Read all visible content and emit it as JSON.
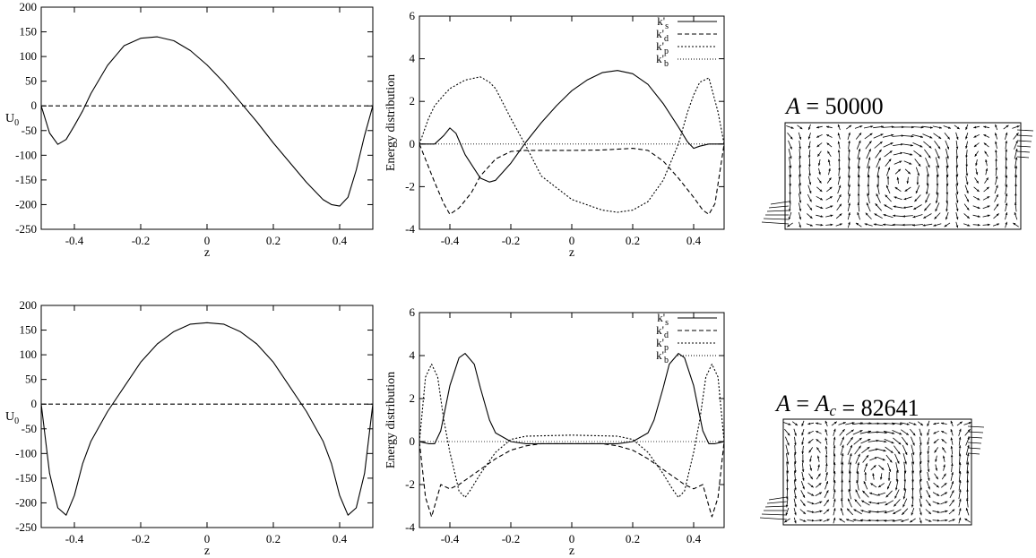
{
  "chart_data": [
    {
      "type": "line",
      "ylabel": "U_0",
      "xlabel": "z",
      "xlim": [
        -0.5,
        0.5
      ],
      "ylim": [
        -250,
        200
      ],
      "xticks": [
        "-0.4",
        "-0.2",
        "0",
        "0.2",
        "0.4"
      ],
      "yticks": [
        "200",
        "150",
        "100",
        "50",
        "0",
        "-50",
        "-100",
        "-150",
        "-200",
        "-250"
      ],
      "series": [
        {
          "style": "solid",
          "x": [
            -0.5,
            -0.475,
            -0.45,
            -0.425,
            -0.4,
            -0.375,
            -0.35,
            -0.3,
            -0.25,
            -0.2,
            -0.15,
            -0.1,
            -0.05,
            0.0,
            0.05,
            0.1,
            0.15,
            0.2,
            0.25,
            0.3,
            0.35,
            0.375,
            0.4,
            0.425,
            0.45,
            0.475,
            0.5
          ],
          "y": [
            0,
            -55,
            -78,
            -68,
            -40,
            -10,
            25,
            82,
            122,
            137,
            140,
            132,
            112,
            83,
            48,
            8,
            -32,
            -75,
            -115,
            -155,
            -190,
            -200,
            -203,
            -185,
            -130,
            -60,
            0
          ]
        },
        {
          "style": "dashed",
          "x": [
            -0.5,
            0.5
          ],
          "y": [
            0,
            0
          ]
        }
      ]
    },
    {
      "type": "line",
      "ylabel": "Energy distribution",
      "xlabel": "z",
      "xlim": [
        -0.5,
        0.5
      ],
      "ylim": [
        -4,
        6
      ],
      "xticks": [
        "-0.4",
        "-0.2",
        "0",
        "0.2",
        "0.4"
      ],
      "yticks": [
        "6",
        "4",
        "2",
        "0",
        "-2",
        "-4"
      ],
      "legend": {
        "position": "top-right"
      },
      "series": [
        {
          "name": "k'_s",
          "style": "solid",
          "x": [
            -0.5,
            -0.45,
            -0.42,
            -0.4,
            -0.38,
            -0.35,
            -0.3,
            -0.27,
            -0.25,
            -0.2,
            -0.15,
            -0.1,
            -0.05,
            0.0,
            0.05,
            0.1,
            0.15,
            0.2,
            0.25,
            0.3,
            0.35,
            0.38,
            0.4,
            0.42,
            0.45,
            0.5
          ],
          "y": [
            0,
            0,
            0.4,
            0.75,
            0.5,
            -0.5,
            -1.6,
            -1.78,
            -1.7,
            -0.9,
            0.1,
            1.0,
            1.8,
            2.5,
            3.0,
            3.35,
            3.45,
            3.3,
            2.8,
            1.9,
            0.8,
            0.1,
            -0.2,
            -0.1,
            0,
            0
          ]
        },
        {
          "name": "k'_d",
          "style": "dashed",
          "x": [
            -0.5,
            -0.45,
            -0.42,
            -0.4,
            -0.37,
            -0.33,
            -0.3,
            -0.25,
            -0.2,
            -0.15,
            -0.1,
            0.0,
            0.1,
            0.2,
            0.25,
            0.3,
            0.35,
            0.4,
            0.43,
            0.45,
            0.47,
            0.5
          ],
          "y": [
            0,
            -1.8,
            -2.8,
            -3.3,
            -3.0,
            -2.3,
            -1.5,
            -0.7,
            -0.35,
            -0.3,
            -0.3,
            -0.3,
            -0.28,
            -0.2,
            -0.3,
            -0.8,
            -1.6,
            -2.5,
            -3.1,
            -3.3,
            -2.8,
            0
          ]
        },
        {
          "name": "k'_p",
          "style": "dotted",
          "x": [
            -0.5,
            -0.47,
            -0.45,
            -0.42,
            -0.4,
            -0.35,
            -0.3,
            -0.27,
            -0.25,
            -0.2,
            -0.15,
            -0.1,
            0.0,
            0.1,
            0.15,
            0.2,
            0.25,
            0.3,
            0.35,
            0.38,
            0.4,
            0.42,
            0.45,
            0.48,
            0.5
          ],
          "y": [
            0,
            1.2,
            1.8,
            2.3,
            2.6,
            3.0,
            3.15,
            2.9,
            2.6,
            1.2,
            -0.1,
            -1.5,
            -2.6,
            -3.1,
            -3.2,
            -3.1,
            -2.7,
            -1.7,
            0.0,
            1.5,
            2.3,
            2.9,
            3.1,
            1.5,
            0
          ]
        },
        {
          "name": "k'_b",
          "style": "thin-dotted",
          "x": [
            -0.5,
            0.5
          ],
          "y": [
            0,
            0
          ]
        }
      ]
    },
    {
      "type": "line",
      "ylabel": "U_0",
      "xlabel": "z",
      "xlim": [
        -0.5,
        0.5
      ],
      "ylim": [
        -250,
        200
      ],
      "xticks": [
        "-0.4",
        "-0.2",
        "0",
        "0.2",
        "0.4"
      ],
      "yticks": [
        "200",
        "150",
        "100",
        "50",
        "0",
        "-50",
        "-100",
        "-150",
        "-200",
        "-250"
      ],
      "series": [
        {
          "style": "solid",
          "x": [
            -0.5,
            -0.475,
            -0.45,
            -0.425,
            -0.4,
            -0.375,
            -0.35,
            -0.3,
            -0.25,
            -0.2,
            -0.15,
            -0.1,
            -0.05,
            0.0,
            0.05,
            0.1,
            0.15,
            0.2,
            0.25,
            0.3,
            0.35,
            0.375,
            0.4,
            0.425,
            0.45,
            0.475,
            0.5
          ],
          "y": [
            0,
            -140,
            -210,
            -225,
            -185,
            -120,
            -75,
            -15,
            35,
            85,
            122,
            147,
            162,
            165,
            162,
            147,
            122,
            85,
            35,
            -15,
            -75,
            -120,
            -185,
            -225,
            -210,
            -140,
            0
          ]
        },
        {
          "style": "dashed",
          "x": [
            -0.5,
            0.5
          ],
          "y": [
            0,
            0
          ]
        }
      ]
    },
    {
      "type": "line",
      "ylabel": "Energy distribution",
      "xlabel": "z",
      "xlim": [
        -0.5,
        0.5
      ],
      "ylim": [
        -4,
        6
      ],
      "xticks": [
        "-0.4",
        "-0.2",
        "0",
        "0.2",
        "0.4"
      ],
      "yticks": [
        "6",
        "4",
        "2",
        "0",
        "-2",
        "-4"
      ],
      "legend": {
        "position": "top-right"
      },
      "series": [
        {
          "name": "k'_s",
          "style": "solid",
          "x": [
            -0.5,
            -0.47,
            -0.45,
            -0.43,
            -0.4,
            -0.37,
            -0.35,
            -0.32,
            -0.3,
            -0.27,
            -0.25,
            -0.2,
            -0.15,
            0.0,
            0.15,
            0.2,
            0.25,
            0.27,
            0.3,
            0.32,
            0.35,
            0.37,
            0.4,
            0.43,
            0.45,
            0.47,
            0.5
          ],
          "y": [
            0,
            -0.1,
            -0.1,
            0.5,
            2.6,
            3.9,
            4.1,
            3.6,
            2.5,
            1.0,
            0.4,
            0.0,
            -0.1,
            -0.1,
            -0.1,
            0.0,
            0.4,
            1.0,
            2.5,
            3.6,
            4.1,
            3.9,
            2.6,
            0.5,
            -0.1,
            -0.1,
            0
          ]
        },
        {
          "name": "k'_d",
          "style": "dashed",
          "x": [
            -0.5,
            -0.48,
            -0.46,
            -0.45,
            -0.43,
            -0.4,
            -0.37,
            -0.33,
            -0.3,
            -0.25,
            -0.2,
            -0.15,
            -0.1,
            0.0,
            0.1,
            0.15,
            0.2,
            0.25,
            0.3,
            0.33,
            0.37,
            0.4,
            0.43,
            0.45,
            0.46,
            0.48,
            0.5
          ],
          "y": [
            0,
            -2.6,
            -3.5,
            -3.0,
            -2.0,
            -2.2,
            -2.0,
            -1.6,
            -1.3,
            -0.8,
            -0.4,
            -0.2,
            -0.1,
            -0.1,
            -0.1,
            -0.2,
            -0.4,
            -0.8,
            -1.3,
            -1.6,
            -2.0,
            -2.2,
            -2.0,
            -3.0,
            -3.5,
            -2.6,
            0
          ]
        },
        {
          "name": "k'_p",
          "style": "dotted",
          "x": [
            -0.5,
            -0.48,
            -0.46,
            -0.44,
            -0.42,
            -0.4,
            -0.37,
            -0.35,
            -0.33,
            -0.3,
            -0.25,
            -0.2,
            -0.15,
            0.0,
            0.15,
            0.2,
            0.25,
            0.3,
            0.33,
            0.35,
            0.37,
            0.4,
            0.42,
            0.44,
            0.46,
            0.48,
            0.5
          ],
          "y": [
            0,
            3.0,
            3.6,
            3.0,
            1.0,
            -0.5,
            -2.3,
            -2.6,
            -2.2,
            -1.5,
            -0.5,
            0.1,
            0.25,
            0.3,
            0.25,
            0.1,
            -0.5,
            -1.5,
            -2.2,
            -2.6,
            -2.3,
            -0.5,
            1.0,
            3.0,
            3.6,
            3.0,
            0
          ]
        },
        {
          "name": "k'_b",
          "style": "thin-dotted",
          "x": [
            -0.5,
            0.5
          ],
          "y": [
            0,
            0
          ]
        }
      ]
    }
  ],
  "flow_panels": [
    {
      "title": "A = 50000"
    },
    {
      "title": "A = A_c = 82641"
    }
  ]
}
